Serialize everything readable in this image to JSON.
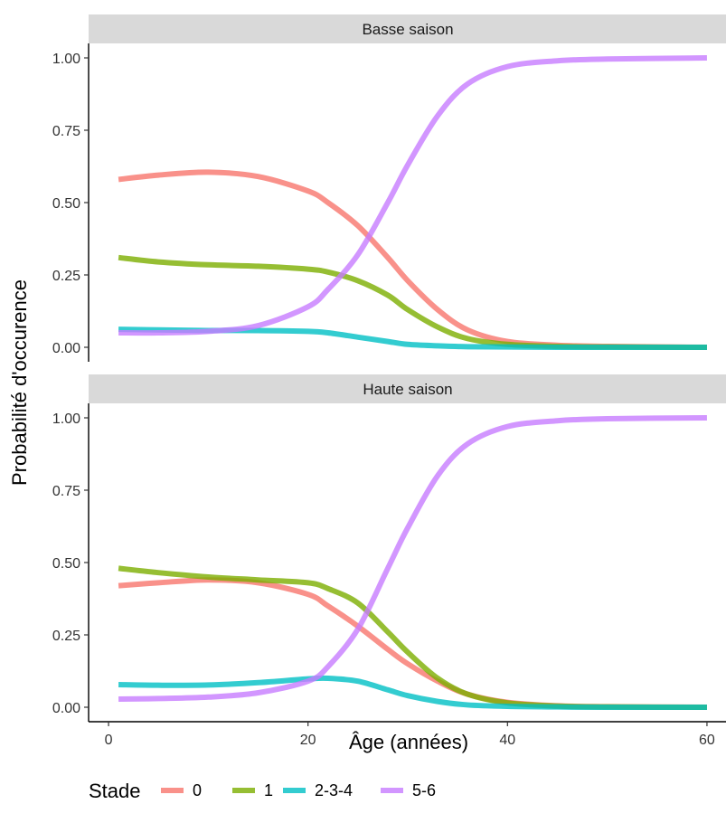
{
  "chart_data": {
    "type": "line",
    "ylabel": "Probabilité d'occurence",
    "xlabel": "Âge (années)",
    "xlim": [
      -2,
      62
    ],
    "ylim": [
      -0.05,
      1.05
    ],
    "x_ticks": [
      0,
      20,
      40,
      60
    ],
    "x_tick_labels": [
      "0",
      "20",
      "40",
      "60"
    ],
    "y_ticks": [
      0,
      0.25,
      0.5,
      0.75,
      1
    ],
    "y_tick_labels": [
      "0.00",
      "0.25",
      "0.50",
      "0.75",
      "1.00"
    ],
    "grid": false,
    "legend": {
      "title": "Stade",
      "position": "bottom",
      "entries": [
        {
          "label": "0",
          "color": "#F8766D"
        },
        {
          "label": "1",
          "color": "#7CAE00"
        },
        {
          "label": "2-3-4",
          "color": "#00BFC4"
        },
        {
          "label": "5-6",
          "color": "#C77CFF"
        }
      ]
    },
    "x": [
      1,
      5,
      10,
      15,
      20,
      22,
      25,
      28,
      30,
      33,
      36,
      40,
      45,
      50,
      60
    ],
    "panels": [
      {
        "title": "Basse saison",
        "series": [
          {
            "name": "0",
            "color": "#F8766D",
            "values": [
              0.58,
              0.595,
              0.605,
              0.59,
              0.54,
              0.5,
              0.42,
              0.31,
              0.23,
              0.13,
              0.06,
              0.02,
              0.007,
              0.003,
              0.0
            ]
          },
          {
            "name": "1",
            "color": "#7CAE00",
            "values": [
              0.31,
              0.295,
              0.285,
              0.28,
              0.27,
              0.26,
              0.23,
              0.18,
              0.13,
              0.07,
              0.03,
              0.01,
              0.003,
              0.001,
              0.0
            ]
          },
          {
            "name": "2-3-4",
            "color": "#00BFC4",
            "values": [
              0.062,
              0.06,
              0.058,
              0.058,
              0.055,
              0.05,
              0.035,
              0.02,
              0.01,
              0.005,
              0.002,
              0.001,
              0.0,
              0.0,
              0.0
            ]
          },
          {
            "name": "5-6",
            "color": "#C77CFF",
            "values": [
              0.05,
              0.05,
              0.055,
              0.075,
              0.14,
              0.2,
              0.32,
              0.5,
              0.63,
              0.8,
              0.91,
              0.97,
              0.99,
              0.996,
              1.0
            ]
          }
        ]
      },
      {
        "title": "Haute saison",
        "series": [
          {
            "name": "0",
            "color": "#F8766D",
            "values": [
              0.42,
              0.43,
              0.44,
              0.43,
              0.39,
              0.35,
              0.28,
              0.2,
              0.15,
              0.09,
              0.045,
              0.017,
              0.005,
              0.002,
              0.0
            ]
          },
          {
            "name": "1",
            "color": "#7CAE00",
            "values": [
              0.48,
              0.465,
              0.45,
              0.44,
              0.43,
              0.41,
              0.36,
              0.26,
              0.19,
              0.1,
              0.045,
              0.015,
              0.004,
              0.001,
              0.0
            ]
          },
          {
            "name": "2-3-4",
            "color": "#00BFC4",
            "values": [
              0.078,
              0.076,
              0.077,
              0.085,
              0.098,
              0.1,
              0.09,
              0.06,
              0.04,
              0.02,
              0.008,
              0.003,
              0.001,
              0.0,
              0.0
            ]
          },
          {
            "name": "5-6",
            "color": "#C77CFF",
            "values": [
              0.028,
              0.03,
              0.035,
              0.05,
              0.09,
              0.14,
              0.27,
              0.48,
              0.62,
              0.8,
              0.91,
              0.97,
              0.99,
              0.997,
              1.0
            ]
          }
        ]
      }
    ]
  }
}
